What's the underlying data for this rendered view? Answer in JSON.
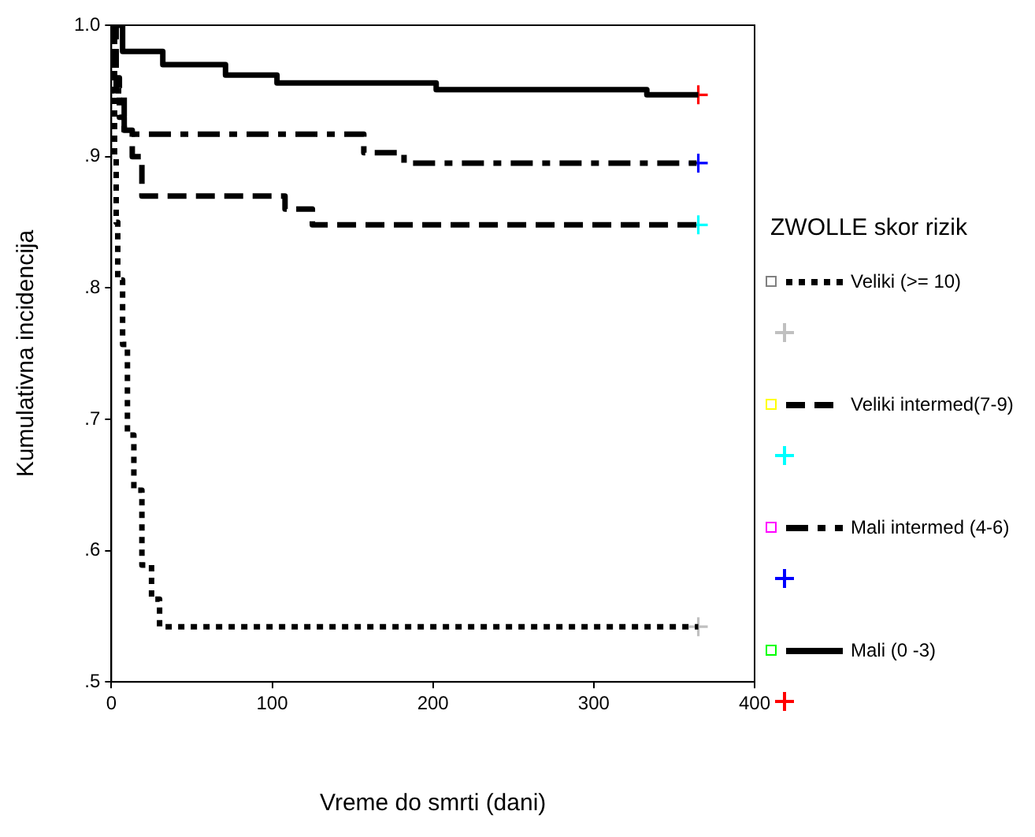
{
  "chart_data": {
    "type": "step",
    "xlabel": "Vreme do smrti (dani)",
    "ylabel": "Kumulativna incidencija",
    "legend_title": "ZWOLLE skor rizik",
    "legend": "right",
    "xlim": [
      0,
      400
    ],
    "xticks": [
      0,
      100,
      200,
      300,
      400
    ],
    "ylim": [
      0.5,
      1.0
    ],
    "yticks": [
      {
        "value": 0.5,
        "label": ".5"
      },
      {
        "value": 0.6,
        "label": ".6"
      },
      {
        "value": 0.7,
        "label": ".7"
      },
      {
        "value": 0.8,
        "label": ".8"
      },
      {
        "value": 0.9,
        "label": ".9"
      },
      {
        "value": 1.0,
        "label": "1.0"
      }
    ],
    "series": [
      {
        "name": "Veliki (>= 10)",
        "color": "#000000",
        "line_style": "dotted",
        "x": [
          0,
          1,
          2,
          3,
          4,
          7,
          10,
          14,
          19,
          25,
          30,
          365
        ],
        "values": [
          1.0,
          0.95,
          0.9,
          0.85,
          0.806,
          0.757,
          0.688,
          0.646,
          0.589,
          0.563,
          0.542,
          0.542
        ]
      },
      {
        "name": "Veliki intermed(7-9)",
        "color": "#000000",
        "line_style": "dashed",
        "x": [
          0,
          3,
          8,
          13,
          19,
          108,
          125,
          365
        ],
        "values": [
          1.0,
          0.95,
          0.92,
          0.9,
          0.87,
          0.86,
          0.848,
          0.848
        ]
      },
      {
        "name": "Mali intermed (4-6)",
        "color": "#000000",
        "line_style": "dashdot",
        "x": [
          0,
          2,
          5,
          8,
          157,
          182,
          365
        ],
        "values": [
          1.0,
          0.96,
          0.93,
          0.917,
          0.903,
          0.895,
          0.895
        ]
      },
      {
        "name": "Mali (0 -3)",
        "color": "#000000",
        "line_style": "solid",
        "x": [
          0,
          7,
          32,
          71,
          103,
          202,
          333,
          365
        ],
        "values": [
          1.0,
          0.98,
          0.97,
          0.962,
          0.956,
          0.951,
          0.947,
          0.947
        ]
      },
      {
        "type": "scatter",
        "marker": "cross",
        "color": "#c0c0c0",
        "x": [
          365
        ],
        "values": [
          0.542
        ]
      },
      {
        "type": "scatter",
        "marker": "cross",
        "color": "#00ffff",
        "x": [
          365
        ],
        "values": [
          0.848
        ]
      },
      {
        "type": "scatter",
        "marker": "cross",
        "color": "#0000ff",
        "x": [
          365
        ],
        "values": [
          0.895
        ]
      },
      {
        "type": "scatter",
        "marker": "cross",
        "color": "#ff0000",
        "x": [
          365
        ],
        "values": [
          0.947
        ]
      }
    ]
  }
}
